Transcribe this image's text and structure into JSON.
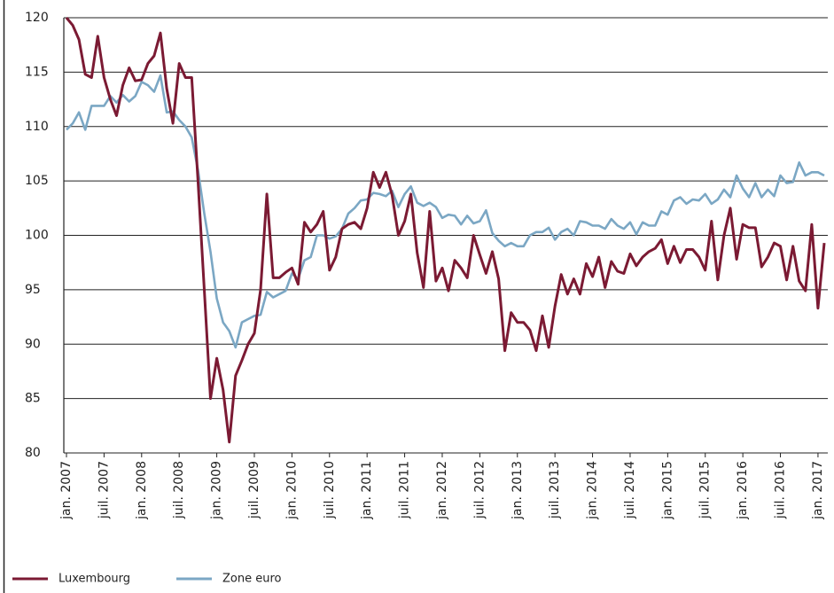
{
  "chart_data": {
    "type": "line",
    "categories": [
      "jan. 2007",
      null,
      null,
      null,
      null,
      null,
      "juil. 2007",
      null,
      null,
      null,
      null,
      null,
      "jan. 2008",
      null,
      null,
      null,
      null,
      null,
      "juil. 2008",
      null,
      null,
      null,
      null,
      null,
      "jan. 2009",
      null,
      null,
      null,
      null,
      null,
      "juil. 2009",
      null,
      null,
      null,
      null,
      null,
      "jan. 2010",
      null,
      null,
      null,
      null,
      null,
      "juil. 2010",
      null,
      null,
      null,
      null,
      null,
      "jan. 2011",
      null,
      null,
      null,
      null,
      null,
      "juil. 2011",
      null,
      null,
      null,
      null,
      null,
      "jan. 2012",
      null,
      null,
      null,
      null,
      null,
      "juil. 2012",
      null,
      null,
      null,
      null,
      null,
      "jan. 2013",
      null,
      null,
      null,
      null,
      null,
      "juil. 2013",
      null,
      null,
      null,
      null,
      null,
      "jan. 2014",
      null,
      null,
      null,
      null,
      null,
      "juil. 2014",
      null,
      null,
      null,
      null,
      null,
      "jan. 2015",
      null,
      null,
      null,
      null,
      null,
      "juil. 2015",
      null,
      null,
      null,
      null,
      null,
      "jan. 2016",
      null,
      null,
      null,
      null,
      null,
      "juil. 2016",
      null,
      null,
      null,
      null,
      null,
      "jan. 2017",
      null
    ],
    "series": [
      {
        "name": "Luxembourg",
        "color": "#7b1a33",
        "values": [
          120,
          119.3,
          118,
          114.8,
          114.5,
          118.3,
          114.5,
          112.5,
          111,
          113.8,
          115.4,
          114.2,
          114.3,
          115.8,
          116.5,
          118.6,
          113.5,
          110.3,
          115.8,
          114.5,
          114.5,
          105,
          95,
          85,
          88.7,
          85.8,
          81,
          87.1,
          88.5,
          90,
          91,
          95,
          103.8,
          96.1,
          96.1,
          96.6,
          97,
          95.5,
          101.2,
          100.3,
          101,
          102.2,
          96.8,
          98,
          100.6,
          101,
          101.2,
          100.6,
          102.5,
          105.8,
          104.4,
          105.8,
          103.7,
          100,
          101.3,
          103.8,
          98.4,
          95.2,
          102.2,
          95.8,
          97,
          94.9,
          97.7,
          97,
          96.1,
          100,
          98.2,
          96.5,
          98.5,
          96,
          89.4,
          92.9,
          92,
          92,
          91.3,
          89.4,
          92.6,
          89.7,
          93.5,
          96.4,
          94.6,
          96,
          94.6,
          97.4,
          96.2,
          98,
          95.2,
          97.6,
          96.7,
          96.5,
          98.3,
          97.2,
          98,
          98.5,
          98.8,
          99.6,
          97.4,
          99,
          97.5,
          98.7,
          98.7,
          98,
          96.8,
          101.3,
          95.9,
          100,
          102.5,
          97.8,
          101,
          100.7,
          100.7,
          97.1,
          98,
          99.3,
          99,
          95.9,
          99,
          95.8,
          94.9,
          101,
          93.3,
          99.3
        ]
      },
      {
        "name": "Zone euro",
        "color": "#7ba7c4",
        "values": [
          109.7,
          110.3,
          111.3,
          109.7,
          111.9,
          111.9,
          111.9,
          112.8,
          112.2,
          112.9,
          112.3,
          112.8,
          114.1,
          113.8,
          113.2,
          114.7,
          111.3,
          111.4,
          110.6,
          110,
          109,
          106,
          102,
          98.5,
          94.2,
          92,
          91.2,
          89.7,
          92,
          92.3,
          92.6,
          92.7,
          94.8,
          94.3,
          94.6,
          94.9,
          96.5,
          96,
          97.7,
          98,
          100,
          100,
          99.7,
          99.9,
          100.6,
          102,
          102.5,
          103.2,
          103.3,
          103.9,
          103.8,
          103.6,
          104.1,
          102.6,
          103.8,
          104.5,
          103,
          102.7,
          103,
          102.6,
          101.6,
          101.9,
          101.8,
          101,
          101.8,
          101.1,
          101.3,
          102.3,
          100.2,
          99.5,
          99,
          99.3,
          99,
          99,
          100,
          100.3,
          100.3,
          100.7,
          99.6,
          100.3,
          100.6,
          100,
          101.3,
          101.2,
          100.9,
          100.9,
          100.6,
          101.5,
          100.9,
          100.6,
          101.2,
          100.1,
          101.2,
          100.9,
          100.9,
          102.2,
          101.9,
          103.2,
          103.5,
          102.9,
          103.3,
          103.2,
          103.8,
          102.9,
          103.3,
          104.2,
          103.5,
          105.5,
          104.3,
          103.5,
          104.8,
          103.5,
          104.2,
          103.6,
          105.5,
          104.8,
          104.9,
          106.7,
          105.5,
          105.8,
          105.8,
          105.5
        ]
      }
    ],
    "ylim": [
      80,
      120
    ],
    "yticks": [
      80,
      85,
      90,
      95,
      100,
      105,
      110,
      115,
      120
    ],
    "grid": true
  }
}
